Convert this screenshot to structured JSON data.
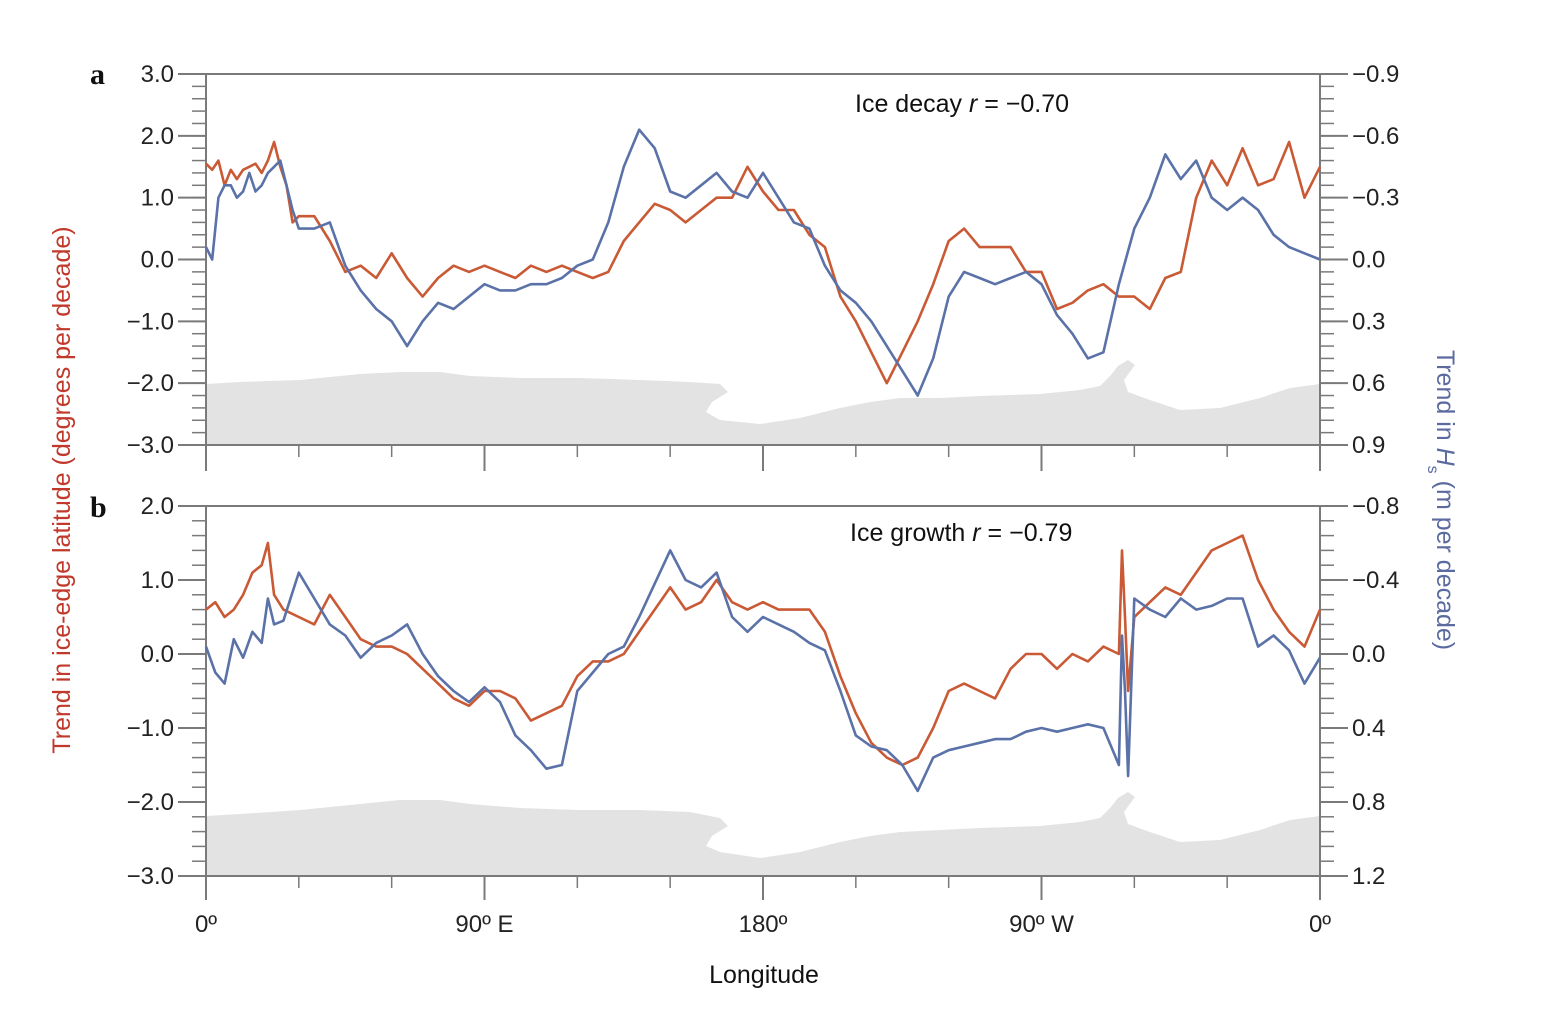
{
  "chart_data": [
    {
      "type": "line",
      "panel_label": "a",
      "annotation": {
        "prefix": "Ice decay ",
        "var": "r",
        "suffix": " = −0.70"
      },
      "x_unit": "degrees east (0 to 360, 0° east through 180° to 90° W and back to 0°)",
      "xlim": [
        0,
        360
      ],
      "x_ticks": [
        {
          "x": 0,
          "label": "0º"
        },
        {
          "x": 90,
          "label": "90º E"
        },
        {
          "x": 180,
          "label": "180º"
        },
        {
          "x": 270,
          "label": "90º W"
        },
        {
          "x": 360,
          "label": "0º"
        }
      ],
      "ylim_left": [
        -3.0,
        3.0
      ],
      "ylim_right": [
        -0.9,
        0.9
      ],
      "right_axis_inverted": true,
      "y_ticks_left": [
        "3.0",
        "2.0",
        "1.0",
        "0.0",
        "−1.0",
        "−2.0",
        "−3.0"
      ],
      "y_tick_values_left": [
        3,
        2,
        1,
        0,
        -1,
        -2,
        -3
      ],
      "y_ticks_right": [
        "−0.9",
        "−0.6",
        "−0.3",
        "0.0",
        "0.3",
        "0.6",
        "0.9"
      ],
      "y_tick_values_right": [
        -0.9,
        -0.6,
        -0.3,
        0,
        0.3,
        0.6,
        0.9
      ],
      "series": [
        {
          "axis": "left",
          "color": "#c95a35",
          "x": [
            0,
            2,
            4,
            6,
            8,
            10,
            12,
            14,
            16,
            18,
            20,
            22,
            24,
            26,
            28,
            30,
            35,
            40,
            45,
            50,
            55,
            60,
            65,
            70,
            75,
            80,
            85,
            90,
            95,
            100,
            105,
            110,
            115,
            120,
            125,
            130,
            135,
            140,
            145,
            150,
            155,
            160,
            165,
            170,
            175,
            180,
            185,
            190,
            195,
            200,
            205,
            210,
            215,
            220,
            225,
            230,
            235,
            240,
            245,
            250,
            255,
            260,
            265,
            270,
            275,
            280,
            285,
            290,
            295,
            300,
            305,
            310,
            315,
            320,
            325,
            330,
            335,
            340,
            345,
            350,
            355,
            360
          ],
          "y": [
            1.55,
            1.45,
            1.6,
            1.2,
            1.45,
            1.3,
            1.45,
            1.5,
            1.55,
            1.4,
            1.6,
            1.9,
            1.5,
            1.2,
            0.6,
            0.7,
            0.7,
            0.3,
            -0.2,
            -0.1,
            -0.3,
            0.1,
            -0.3,
            -0.6,
            -0.3,
            -0.1,
            -0.2,
            -0.1,
            -0.2,
            -0.3,
            -0.1,
            -0.2,
            -0.1,
            -0.2,
            -0.3,
            -0.2,
            0.3,
            0.6,
            0.9,
            0.8,
            0.6,
            0.8,
            1.0,
            1.0,
            1.5,
            1.1,
            0.8,
            0.8,
            0.4,
            0.2,
            -0.6,
            -1.0,
            -1.5,
            -2.0,
            -1.5,
            -1.0,
            -0.4,
            0.3,
            0.5,
            0.2,
            0.2,
            0.2,
            -0.2,
            -0.2,
            -0.8,
            -0.7,
            -0.5,
            -0.4,
            -0.6,
            -0.6,
            -0.8,
            -0.3,
            -0.2,
            1.0,
            1.6,
            1.2,
            1.8,
            1.2,
            1.3,
            1.9,
            1.0,
            1.5
          ]
        },
        {
          "axis": "right",
          "color": "#5b72a8",
          "x": [
            0,
            2,
            4,
            6,
            8,
            10,
            12,
            14,
            16,
            18,
            20,
            22,
            24,
            26,
            28,
            30,
            35,
            40,
            45,
            50,
            55,
            60,
            65,
            70,
            75,
            80,
            85,
            90,
            95,
            100,
            105,
            110,
            115,
            120,
            125,
            130,
            135,
            140,
            145,
            150,
            155,
            160,
            165,
            170,
            175,
            180,
            185,
            190,
            195,
            200,
            205,
            210,
            215,
            220,
            225,
            230,
            235,
            240,
            245,
            250,
            255,
            260,
            265,
            270,
            275,
            280,
            285,
            290,
            295,
            300,
            305,
            310,
            315,
            320,
            325,
            330,
            335,
            340,
            345,
            350,
            355,
            360
          ],
          "y": [
            -0.06,
            0.0,
            -0.3,
            -0.36,
            -0.36,
            -0.3,
            -0.33,
            -0.42,
            -0.33,
            -0.36,
            -0.42,
            -0.45,
            -0.48,
            -0.36,
            -0.24,
            -0.15,
            -0.15,
            -0.18,
            0.03,
            0.15,
            0.24,
            0.3,
            0.42,
            0.3,
            0.21,
            0.24,
            0.18,
            0.12,
            0.15,
            0.15,
            0.12,
            0.12,
            0.09,
            0.03,
            0.0,
            -0.18,
            -0.45,
            -0.63,
            -0.54,
            -0.33,
            -0.3,
            -0.36,
            -0.42,
            -0.33,
            -0.3,
            -0.42,
            -0.3,
            -0.18,
            -0.15,
            0.03,
            0.15,
            0.21,
            0.3,
            0.42,
            0.54,
            0.66,
            0.48,
            0.18,
            0.06,
            0.09,
            0.12,
            0.09,
            0.06,
            0.12,
            0.27,
            0.36,
            0.48,
            0.45,
            0.12,
            -0.15,
            -0.3,
            -0.51,
            -0.39,
            -0.48,
            -0.3,
            -0.24,
            -0.3,
            -0.24,
            -0.12,
            -0.06,
            -0.03,
            0.0
          ]
        }
      ]
    },
    {
      "type": "line",
      "panel_label": "b",
      "annotation": {
        "prefix": "Ice growth ",
        "var": "r",
        "suffix": " = −0.79"
      },
      "x_unit": "degrees east (0 to 360, 0° east through 180° to 90° W and back to 0°)",
      "xlim": [
        0,
        360
      ],
      "x_ticks": [
        {
          "x": 0,
          "label": "0º"
        },
        {
          "x": 90,
          "label": "90º E"
        },
        {
          "x": 180,
          "label": "180º"
        },
        {
          "x": 270,
          "label": "90º W"
        },
        {
          "x": 360,
          "label": "0º"
        }
      ],
      "ylim_left": [
        -3.0,
        2.0
      ],
      "ylim_right": [
        -0.8,
        1.2
      ],
      "right_axis_inverted": true,
      "y_ticks_left": [
        "2.0",
        "1.0",
        "0.0",
        "−1.0",
        "−2.0",
        "−3.0"
      ],
      "y_tick_values_left": [
        2,
        1,
        0,
        -1,
        -2,
        -3
      ],
      "y_ticks_right": [
        "−0.8",
        "−0.4",
        "0.0",
        "0.4",
        "0.8",
        "1.2"
      ],
      "y_tick_values_right": [
        -0.8,
        -0.4,
        0,
        0.4,
        0.8,
        1.2
      ],
      "series": [
        {
          "axis": "left",
          "color": "#c95a35",
          "x": [
            0,
            3,
            6,
            9,
            12,
            15,
            18,
            20,
            22,
            25,
            30,
            35,
            40,
            45,
            50,
            55,
            60,
            65,
            70,
            75,
            80,
            85,
            90,
            95,
            100,
            105,
            110,
            115,
            120,
            125,
            130,
            135,
            140,
            145,
            150,
            155,
            160,
            165,
            170,
            175,
            180,
            185,
            190,
            195,
            200,
            205,
            210,
            215,
            220,
            225,
            230,
            235,
            240,
            245,
            250,
            255,
            260,
            265,
            270,
            275,
            280,
            285,
            290,
            295,
            296,
            297,
            298,
            300,
            305,
            310,
            315,
            320,
            325,
            330,
            335,
            340,
            345,
            350,
            355,
            360
          ],
          "y": [
            0.6,
            0.7,
            0.5,
            0.6,
            0.8,
            1.1,
            1.2,
            1.5,
            0.8,
            0.6,
            0.5,
            0.4,
            0.8,
            0.5,
            0.2,
            0.1,
            0.1,
            0.0,
            -0.2,
            -0.4,
            -0.6,
            -0.7,
            -0.5,
            -0.5,
            -0.6,
            -0.9,
            -0.8,
            -0.7,
            -0.3,
            -0.1,
            -0.1,
            0.0,
            0.3,
            0.6,
            0.9,
            0.6,
            0.7,
            1.0,
            0.7,
            0.6,
            0.7,
            0.6,
            0.6,
            0.6,
            0.3,
            -0.3,
            -0.8,
            -1.2,
            -1.4,
            -1.5,
            -1.4,
            -1.0,
            -0.5,
            -0.4,
            -0.5,
            -0.6,
            -0.2,
            0.0,
            0.0,
            -0.2,
            0.0,
            -0.1,
            0.1,
            0.0,
            1.4,
            0.5,
            -0.5,
            0.5,
            0.7,
            0.9,
            0.8,
            1.1,
            1.4,
            1.5,
            1.6,
            1.0,
            0.6,
            0.3,
            0.1,
            0.6
          ]
        },
        {
          "axis": "right",
          "color": "#5b72a8",
          "x": [
            0,
            3,
            6,
            9,
            12,
            15,
            18,
            20,
            22,
            25,
            30,
            35,
            40,
            45,
            50,
            55,
            60,
            65,
            70,
            75,
            80,
            85,
            90,
            95,
            100,
            105,
            110,
            115,
            120,
            125,
            130,
            135,
            140,
            145,
            150,
            155,
            160,
            165,
            170,
            175,
            180,
            185,
            190,
            195,
            200,
            205,
            210,
            215,
            220,
            225,
            230,
            235,
            240,
            245,
            250,
            255,
            260,
            265,
            270,
            275,
            280,
            285,
            290,
            295,
            296,
            297,
            298,
            300,
            305,
            310,
            315,
            320,
            325,
            330,
            335,
            340,
            345,
            350,
            355,
            360
          ],
          "y": [
            -0.04,
            0.1,
            0.16,
            -0.08,
            0.02,
            -0.12,
            -0.06,
            -0.3,
            -0.16,
            -0.18,
            -0.44,
            -0.3,
            -0.16,
            -0.1,
            0.02,
            -0.06,
            -0.1,
            -0.16,
            0.0,
            0.12,
            0.2,
            0.26,
            0.18,
            0.26,
            0.44,
            0.52,
            0.62,
            0.6,
            0.2,
            0.1,
            0.0,
            -0.04,
            -0.2,
            -0.38,
            -0.56,
            -0.4,
            -0.36,
            -0.44,
            -0.2,
            -0.12,
            -0.2,
            -0.16,
            -0.12,
            -0.06,
            -0.02,
            0.2,
            0.44,
            0.5,
            0.52,
            0.6,
            0.74,
            0.56,
            0.52,
            0.5,
            0.48,
            0.46,
            0.46,
            0.42,
            0.4,
            0.42,
            0.4,
            0.38,
            0.4,
            0.6,
            -0.1,
            0.2,
            0.66,
            -0.3,
            -0.24,
            -0.2,
            -0.3,
            -0.24,
            -0.26,
            -0.3,
            -0.3,
            -0.04,
            -0.1,
            -0.02,
            0.16,
            0.02
          ]
        }
      ]
    }
  ],
  "axes_text": {
    "y_left_label": "Trend in ice-edge latitude (degrees per decade)",
    "y_right_label_prefix": "Trend in ",
    "y_right_label_var": "H",
    "y_right_label_sub": "s",
    "y_right_label_suffix": " (m per decade)",
    "x_label": "Longitude"
  },
  "colors": {
    "left_axis_label": "#c0392b",
    "right_axis_label": "#5b6a9f",
    "land": "#e3e3e3",
    "axis": "#7a7a7a"
  }
}
